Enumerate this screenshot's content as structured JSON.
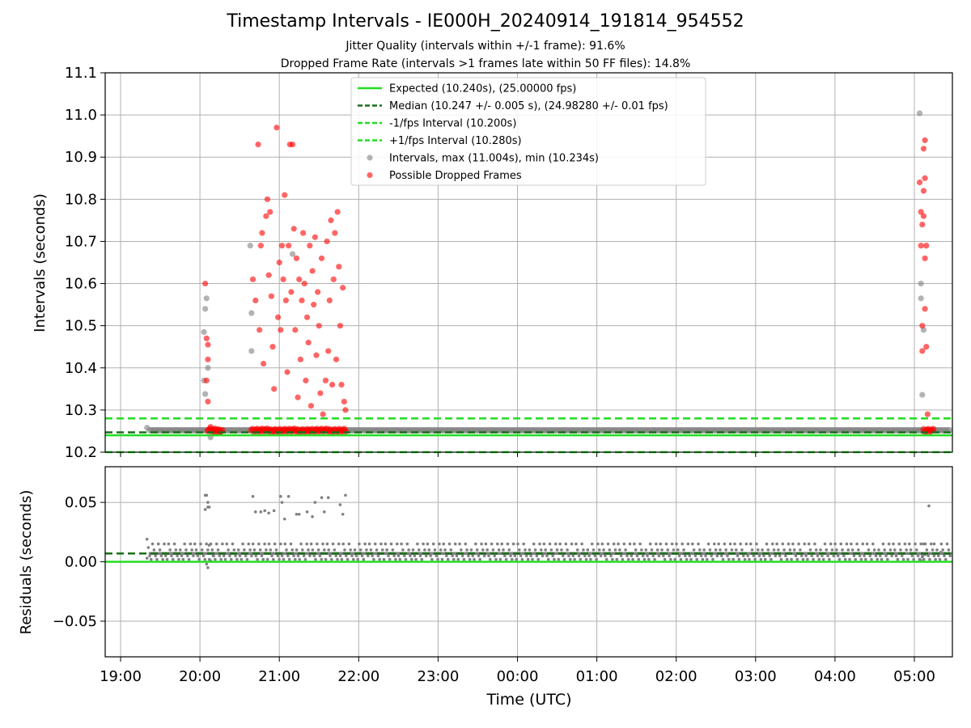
{
  "chart_data": {
    "title": "Timestamp Intervals - IE000H_20240914_191814_954552",
    "subtitle_1": "Jitter Quality (intervals within +/-1 frame): 91.6%",
    "subtitle_2": "Dropped Frame Rate (intervals >1 frames late within 50 FF files): 14.8%",
    "xlabel": "Time (UTC)",
    "xticks": [
      "19:00",
      "20:00",
      "21:00",
      "22:00",
      "23:00",
      "00:00",
      "01:00",
      "02:00",
      "03:00",
      "04:00",
      "05:00"
    ],
    "colors": {
      "expected": "#22dd22",
      "median": "#1a6e1a",
      "fps_bounds": "#22dd22",
      "intervals": "#808080",
      "dropped": "#ff0000",
      "grid": "#b0b0b0"
    },
    "top_panel": {
      "type": "scatter",
      "ylabel": "Intervals (seconds)",
      "ylim": [
        10.2,
        11.1
      ],
      "yticks": [
        "10.2",
        "10.3",
        "10.4",
        "10.5",
        "10.6",
        "10.7",
        "10.8",
        "10.9",
        "11.0",
        "11.1"
      ],
      "grid": true,
      "legend_position": "top-center",
      "lines": {
        "expected": 10.24,
        "median": 10.247,
        "minus_fps": 10.2,
        "plus_fps": 10.28
      },
      "legend": [
        "Expected (10.240s), (25.00000 fps)",
        "Median (10.247 +/- 0.005 s), (24.98280 +/- 0.01 fps)",
        "-1/fps Interval (10.200s)",
        "+1/fps Interval (10.280s)",
        "Intervals, max (11.004s), min (10.234s)",
        "Possible Dropped Frames"
      ],
      "series": [
        {
          "name": "Intervals, max (11.004s), min (10.234s)",
          "points": [
            [
              "19:20",
              10.258
            ],
            [
              "20:03",
              10.37
            ],
            [
              "20:03",
              10.485
            ],
            [
              "20:04",
              10.54
            ],
            [
              "20:05",
              10.565
            ],
            [
              "20:04",
              10.338
            ],
            [
              "20:06",
              10.4
            ],
            [
              "20:08",
              10.235
            ],
            [
              "20:38",
              10.69
            ],
            [
              "20:39",
              10.53
            ],
            [
              "20:39",
              10.44
            ],
            [
              "21:10",
              10.67
            ],
            [
              "05:04",
              11.004
            ],
            [
              "05:05",
              10.6
            ],
            [
              "05:05",
              10.565
            ],
            [
              "05:06",
              10.336
            ],
            [
              "05:07",
              10.49
            ]
          ]
        },
        {
          "name": "Possible Dropped Frames",
          "points": [
            [
              "20:04",
              10.6
            ],
            [
              "20:05",
              10.47
            ],
            [
              "20:06",
              10.455
            ],
            [
              "20:06",
              10.42
            ],
            [
              "20:05",
              10.37
            ],
            [
              "20:06",
              10.32
            ],
            [
              "20:08",
              10.26
            ],
            [
              "20:10",
              10.25
            ],
            [
              "20:12",
              10.245
            ],
            [
              "20:15",
              10.248
            ],
            [
              "20:40",
              10.61
            ],
            [
              "20:42",
              10.56
            ],
            [
              "20:44",
              10.93
            ],
            [
              "20:45",
              10.49
            ],
            [
              "20:46",
              10.69
            ],
            [
              "20:47",
              10.72
            ],
            [
              "20:48",
              10.41
            ],
            [
              "20:50",
              10.76
            ],
            [
              "20:51",
              10.8
            ],
            [
              "20:52",
              10.62
            ],
            [
              "20:53",
              10.77
            ],
            [
              "20:54",
              10.57
            ],
            [
              "20:55",
              10.45
            ],
            [
              "20:56",
              10.35
            ],
            [
              "20:58",
              10.97
            ],
            [
              "20:59",
              10.52
            ],
            [
              "21:00",
              10.65
            ],
            [
              "21:01",
              10.49
            ],
            [
              "21:02",
              10.69
            ],
            [
              "21:03",
              10.61
            ],
            [
              "21:04",
              10.81
            ],
            [
              "21:05",
              10.56
            ],
            [
              "21:06",
              10.39
            ],
            [
              "21:07",
              10.69
            ],
            [
              "21:08",
              10.93
            ],
            [
              "21:09",
              10.58
            ],
            [
              "21:10",
              10.93
            ],
            [
              "21:11",
              10.73
            ],
            [
              "21:12",
              10.49
            ],
            [
              "21:13",
              10.66
            ],
            [
              "21:14",
              10.33
            ],
            [
              "21:15",
              10.61
            ],
            [
              "21:16",
              10.42
            ],
            [
              "21:17",
              10.56
            ],
            [
              "21:18",
              10.72
            ],
            [
              "21:19",
              10.6
            ],
            [
              "21:20",
              10.37
            ],
            [
              "21:21",
              10.52
            ],
            [
              "21:22",
              10.46
            ],
            [
              "21:23",
              10.69
            ],
            [
              "21:24",
              10.31
            ],
            [
              "21:25",
              10.63
            ],
            [
              "21:26",
              10.55
            ],
            [
              "21:27",
              10.71
            ],
            [
              "21:28",
              10.43
            ],
            [
              "21:29",
              10.58
            ],
            [
              "21:30",
              10.5
            ],
            [
              "21:31",
              10.34
            ],
            [
              "21:32",
              10.66
            ],
            [
              "21:33",
              10.29
            ],
            [
              "21:35",
              10.37
            ],
            [
              "21:36",
              10.7
            ],
            [
              "21:37",
              10.44
            ],
            [
              "21:38",
              10.56
            ],
            [
              "21:39",
              10.75
            ],
            [
              "21:40",
              10.36
            ],
            [
              "21:41",
              10.61
            ],
            [
              "21:42",
              10.72
            ],
            [
              "21:43",
              10.42
            ],
            [
              "21:44",
              10.77
            ],
            [
              "21:45",
              10.64
            ],
            [
              "21:46",
              10.5
            ],
            [
              "21:47",
              10.36
            ],
            [
              "21:48",
              10.59
            ],
            [
              "21:49",
              10.32
            ],
            [
              "21:50",
              10.3
            ],
            [
              "05:04",
              10.84
            ],
            [
              "05:05",
              10.77
            ],
            [
              "05:05",
              10.69
            ],
            [
              "05:06",
              10.74
            ],
            [
              "05:06",
              10.5
            ],
            [
              "05:06",
              10.44
            ],
            [
              "05:07",
              10.82
            ],
            [
              "05:07",
              10.92
            ],
            [
              "05:07",
              10.76
            ],
            [
              "05:08",
              10.94
            ],
            [
              "05:08",
              10.85
            ],
            [
              "05:08",
              10.66
            ],
            [
              "05:08",
              10.54
            ],
            [
              "05:09",
              10.69
            ],
            [
              "05:09",
              10.45
            ],
            [
              "05:10",
              10.29
            ]
          ]
        }
      ]
    },
    "bottom_panel": {
      "type": "scatter",
      "ylabel": "Residuals (seconds)",
      "ylim": [
        -0.08,
        0.08
      ],
      "yticks": [
        "−0.05",
        "0.00",
        "0.05"
      ],
      "grid": true,
      "lines": {
        "zero": 0.0,
        "median": 0.007
      },
      "series": [
        {
          "name": "Residuals",
          "points": [
            [
              "19:20",
              0.019
            ],
            [
              "19:21",
              0.012
            ],
            [
              "19:20",
              0.003
            ],
            [
              "20:04",
              0.056
            ],
            [
              "20:05",
              0.056
            ],
            [
              "20:06",
              0.05
            ],
            [
              "20:07",
              0.046
            ],
            [
              "20:04",
              0.044
            ],
            [
              "20:06",
              0.046
            ],
            [
              "20:05",
              -0.002
            ],
            [
              "20:06",
              -0.005
            ],
            [
              "20:07",
              0.014
            ],
            [
              "20:08",
              0.001
            ],
            [
              "20:10",
              0.005
            ],
            [
              "20:40",
              0.055
            ],
            [
              "20:42",
              0.042
            ],
            [
              "20:46",
              0.042
            ],
            [
              "20:49",
              0.043
            ],
            [
              "20:52",
              0.041
            ],
            [
              "20:56",
              0.043
            ],
            [
              "21:01",
              0.055
            ],
            [
              "21:02",
              0.05
            ],
            [
              "21:04",
              0.036
            ],
            [
              "21:07",
              0.055
            ],
            [
              "21:13",
              0.04
            ],
            [
              "21:15",
              0.04
            ],
            [
              "21:21",
              0.042
            ],
            [
              "21:25",
              0.038
            ],
            [
              "21:27",
              0.05
            ],
            [
              "21:32",
              0.054
            ],
            [
              "21:34",
              0.042
            ],
            [
              "21:37",
              0.054
            ],
            [
              "21:46",
              0.048
            ],
            [
              "21:48",
              0.04
            ],
            [
              "21:50",
              0.056
            ],
            [
              "05:04",
              0.002
            ],
            [
              "05:05",
              0.001
            ],
            [
              "05:06",
              0.004
            ],
            [
              "05:07",
              0.015
            ],
            [
              "05:08",
              0.006
            ],
            [
              "05:11",
              0.047
            ],
            [
              "05:15",
              0.015
            ],
            [
              "05:20",
              0.008
            ]
          ]
        }
      ]
    }
  }
}
